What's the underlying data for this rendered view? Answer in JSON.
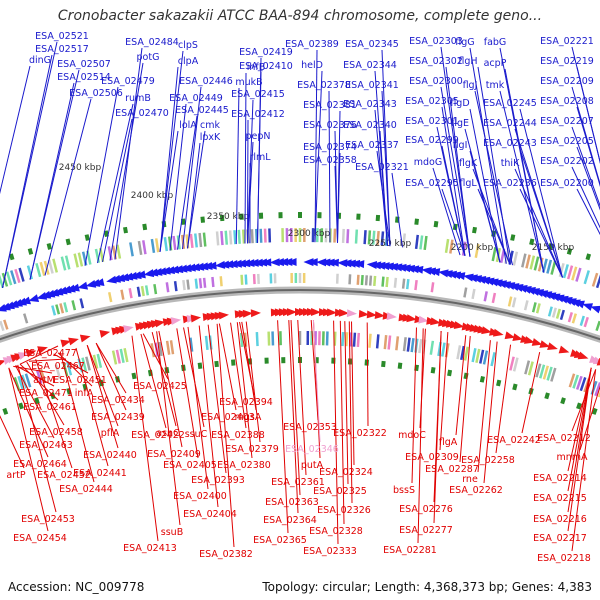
{
  "title": "Cronobacter sakazakii ATCC BAA-894 chromosome, complete geno...",
  "footer": {
    "accession": "Accession: NC_009778",
    "summary": "Topology: circular; Length: 4,368,373 bp; Genes: 4,383"
  },
  "colors": {
    "top_label": "#1a1acc",
    "bottom_label": "#e00000",
    "pink_label": "#f0a0d0",
    "forward_arrow": "#1a1aee",
    "reverse_arrow": "#ee1a1a",
    "tick": "#2a8a2a",
    "backbone": "#888888"
  },
  "scale_labels": [
    "2450 kbp",
    "2400 kbp",
    "2350 kbp",
    "2300 kbp",
    "2250 kbp",
    "2200 kbp",
    "2150 kbp"
  ],
  "top_labels": [
    "dinG",
    "ESA_02521",
    "ESA_02517",
    "ESA_02507",
    "ESA_02514",
    "ESA_02506",
    "ESA_02484",
    "potG",
    "ESA_02479",
    "rumB",
    "ESA_02470",
    "clpS",
    "clpA",
    "ESA_02446",
    "ESA_02449",
    "ESA_02445",
    "lolA",
    "cmk",
    "lpxK",
    "ESA_02419",
    "ihfB",
    "ESA_02410",
    "mukB",
    "ESA_02415",
    "ESA_02412",
    "pepN",
    "rlmL",
    "ESA_02389",
    "helD",
    "ESA_02378",
    "ESA_02381",
    "ESA_02376",
    "ESA_02374",
    "ESA_02358",
    "ESA_02345",
    "ESA_02344",
    "ESA_02341",
    "ESA_02343",
    "ESA_02340",
    "ESA_02337",
    "ESA_02321",
    "ESA_02303",
    "ESA_02302",
    "ESA_02300",
    "ESA_02305",
    "ESA_02301",
    "ESA_02299",
    "mdoG",
    "ESA_02295",
    "flgG",
    "flgH",
    "flgJ",
    "flgD",
    "flgE",
    "flgI",
    "flgK",
    "flgL",
    "fabG",
    "acpP",
    "tmk",
    "ESA_02245",
    "ESA_02244",
    "ESA_02243",
    "thiK",
    "ESA_02236",
    "ESA_02221",
    "ESA_02219",
    "ESA_02209",
    "ESA_02208",
    "ESA_02207",
    "ESA_02205",
    "ESA_02202",
    "ESA_02200"
  ],
  "bottom_labels": [
    "ESA_02477",
    "ESA_02467",
    "artM",
    "ESA_02451",
    "ESA_02471",
    "infA",
    "ESA_02461",
    "ESA_02434",
    "ESA_02458",
    "ESA_02439",
    "pflA",
    "ESA_02463",
    "ESA_02440",
    "ESA_02464",
    "artP",
    "ESA_02441",
    "ESA_02452",
    "ESA_02444",
    "ESA_02453",
    "ESA_02454",
    "ESA_02425",
    "asnC",
    "ESA_02422",
    "ESA_02394",
    "ESA_02403",
    "mgsA",
    "ssuC",
    "ESA_02388",
    "ESA_02409",
    "ESA_02379",
    "ESA_02405",
    "ESA_02380",
    "ESA_02393",
    "ESA_02400",
    "ESA_02404",
    "ssuB",
    "ESA_02413",
    "putA",
    "ESA_02361",
    "ESA_02363",
    "ESA_02364",
    "ESA_02365",
    "ESA_02382",
    "ESA_02353",
    "ESA_02346",
    "ESA_02322",
    "ESA_02324",
    "ESA_02325",
    "ESA_02326",
    "ESA_02328",
    "ESA_02333",
    "mdoC",
    "ESA_02309",
    "flgA",
    "ESA_02287",
    "bssS",
    "ESA_02276",
    "ESA_02277",
    "ESA_02281",
    "ESA_02258",
    "rne",
    "ESA_02262",
    "ESA_02242",
    "ESA_02212",
    "mnmA",
    "ESA_02214",
    "ESA_02215",
    "ESA_02216",
    "ESA_02217",
    "ESA_02218"
  ]
}
